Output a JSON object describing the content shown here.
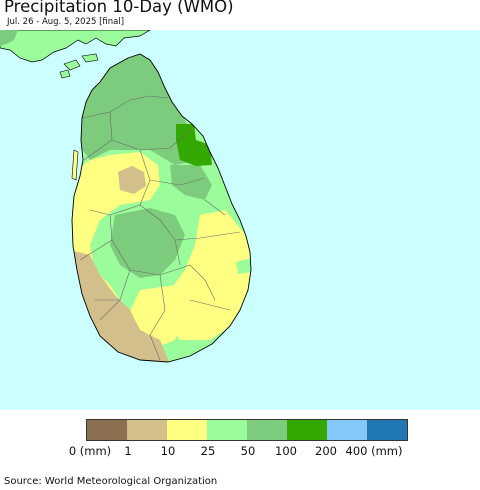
{
  "header": {
    "title": "Precipitation 10-Day (WMO)",
    "subtitle": "Jul. 26 - Aug. 5, 2025 [final]"
  },
  "map": {
    "region": "Sri Lanka",
    "ocean_color": "#ccffff",
    "land_outline_color": "#000000"
  },
  "legend": {
    "bins": [
      {
        "color": "#8b7152"
      },
      {
        "color": "#d2bf8c"
      },
      {
        "color": "#ffff82"
      },
      {
        "color": "#9afc9a"
      },
      {
        "color": "#7dcc7d"
      },
      {
        "color": "#33a800"
      },
      {
        "color": "#84c8fa"
      },
      {
        "color": "#1f78b4"
      }
    ],
    "labels": {
      "l0": "0 (mm)",
      "l1": "1",
      "l2": "10",
      "l3": "25",
      "l4": "50",
      "l5": "100",
      "l6": "200",
      "l7": "400 (mm)"
    }
  },
  "footer": {
    "source": "Source: World Meteorological Organization"
  }
}
